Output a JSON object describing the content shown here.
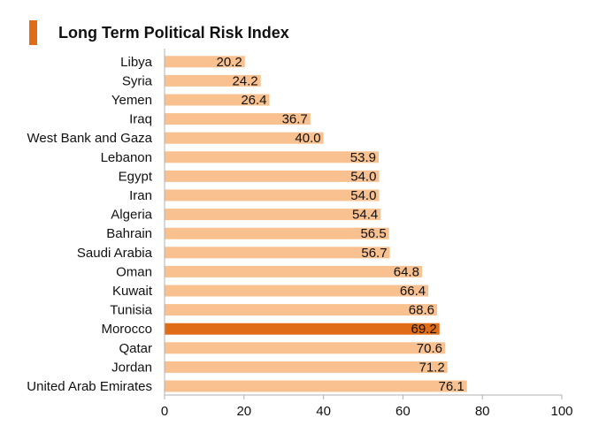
{
  "chart_data": {
    "type": "bar",
    "orientation": "horizontal",
    "title": "Long Term Political Risk Index",
    "xlabel": "",
    "ylabel": "",
    "xlim": [
      0,
      100
    ],
    "xticks": [
      0,
      20,
      40,
      60,
      80,
      100
    ],
    "grid": false,
    "legend": "none",
    "categories": [
      "Libya",
      "Syria",
      "Yemen",
      "Iraq",
      "West Bank and Gaza",
      "Lebanon",
      "Egypt",
      "Iran",
      "Algeria",
      "Bahrain",
      "Saudi Arabia",
      "Oman",
      "Kuwait",
      "Tunisia",
      "Morocco",
      "Qatar",
      "Jordan",
      "United Arab Emirates"
    ],
    "values": [
      20.2,
      24.2,
      26.4,
      36.7,
      40.0,
      53.9,
      54.0,
      54.0,
      54.4,
      56.5,
      56.7,
      64.8,
      66.4,
      68.6,
      69.2,
      70.6,
      71.2,
      76.1
    ],
    "value_labels": [
      "20.2",
      "24.2",
      "26.4",
      "36.7",
      "40.0",
      "53.9",
      "54.0",
      "54.0",
      "54.4",
      "56.5",
      "56.7",
      "64.8",
      "66.4",
      "68.6",
      "69.2",
      "70.6",
      "71.2",
      "76.1"
    ],
    "highlight": "Morocco",
    "colors": {
      "bar": "#f8c18f",
      "highlight": "#e06c17",
      "accent": "#e06c17",
      "axis": "#b0b0b0",
      "text": "#111111"
    }
  }
}
